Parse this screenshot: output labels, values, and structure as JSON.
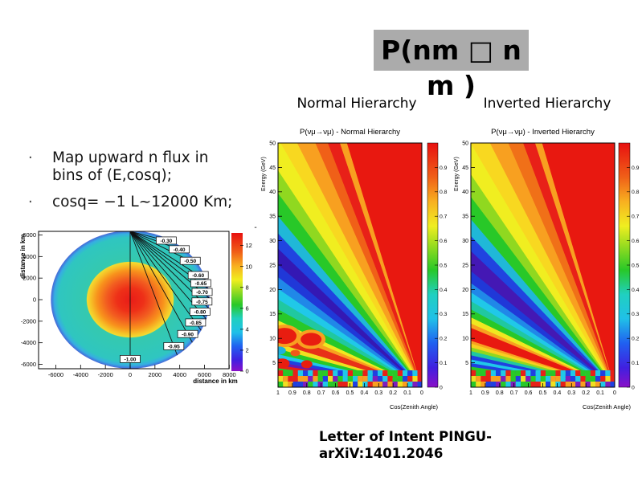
{
  "slide": {
    "title_line1": "P(nm □ n",
    "title_line2": "m )",
    "title_bg": "#ababab",
    "col_left_header": "Normal Hierarchy",
    "col_right_header": "Inverted Hierarchy",
    "bullets": [
      {
        "lines": [
          "Map upward n flux in",
          "bins of (E,cosq);"
        ]
      },
      {
        "lines": [
          "cosq= −1 L~12000 Km;"
        ]
      }
    ],
    "caption_line1": "Letter of Intent PINGU-",
    "caption_line2": "arXiV:1401.2046",
    "stray_mark": "-"
  },
  "chart_data": [
    {
      "id": "earth-plot",
      "type": "heatmap",
      "title": "",
      "xlabel": "distance in km",
      "ylabel": "distance in km",
      "xlim": [
        -7400,
        8000
      ],
      "ylim": [
        -6400,
        6400
      ],
      "xticks": [
        -6000,
        -4000,
        -2000,
        0,
        2000,
        4000,
        6000,
        8000
      ],
      "yticks": [
        6000,
        4000,
        2000,
        0,
        -2000,
        -4000,
        -6000
      ],
      "colorbar": {
        "min": 0,
        "max": 13.2,
        "ticks": [
          12,
          10,
          8,
          6,
          4,
          2,
          0
        ]
      },
      "earth_radius_km": 6400,
      "density_rings": [
        {
          "r_frac": 0.0,
          "color": "#e81c18"
        },
        {
          "r_frac": 0.17,
          "color": "#ee3018"
        },
        {
          "r_frac": 0.3,
          "color": "#f25c20"
        },
        {
          "r_frac": 0.42,
          "color": "#f8921c"
        },
        {
          "r_frac": 0.5,
          "color": "#f6c428"
        },
        {
          "r_frac": 0.545,
          "color": "#f2dc30"
        },
        {
          "r_frac": 0.552,
          "color": "#35c9ae"
        },
        {
          "r_frac": 0.9,
          "color": "#2fc6c0"
        },
        {
          "r_frac": 0.955,
          "color": "#36aee2"
        },
        {
          "r_frac": 0.98,
          "color": "#3e86dd"
        },
        {
          "r_frac": 1.0,
          "color": "#4968d8"
        }
      ],
      "trajectories": [
        {
          "cos": -0.3,
          "label": "-0.30"
        },
        {
          "cos": -0.4,
          "label": "-0.40"
        },
        {
          "cos": -0.5,
          "label": "-0.50"
        },
        {
          "cos": -0.6,
          "label": "-0.60"
        },
        {
          "cos": -0.65,
          "label": "-0.65"
        },
        {
          "cos": -0.7,
          "label": "-0.70"
        },
        {
          "cos": -0.75,
          "label": "-0.75"
        },
        {
          "cos": -0.8,
          "label": "-0.80"
        },
        {
          "cos": -0.85,
          "label": "-0.85"
        },
        {
          "cos": -0.9,
          "label": "-0.90"
        },
        {
          "cos": -0.95,
          "label": "-0.95"
        },
        {
          "cos": -1.0,
          "label": "-1.00"
        }
      ]
    },
    {
      "id": "oscillogram-normal",
      "type": "heatmap",
      "title": "P(νμ→νμ) - Normal Hierarchy",
      "xlabel": "Cos(Zenith Angle)",
      "ylabel": "Energy (GeV)",
      "xlim": [
        1,
        0
      ],
      "ylim": [
        0,
        50
      ],
      "xticks": [
        "1",
        "0.9",
        "0.8",
        "0.7",
        "0.6",
        "0.5",
        "0.4",
        "0.3",
        "0.2",
        "0.1",
        "0"
      ],
      "yticks": [
        50,
        45,
        40,
        35,
        30,
        25,
        20,
        15,
        10,
        5
      ],
      "colorbar_ticks": [
        "0.9",
        "0.8",
        "0.7",
        "0.6",
        "0.5",
        "0.4",
        "0.3",
        "0.2",
        "0.1",
        "0"
      ],
      "bands": [
        [
          0,
          1.0,
          "#7d1dbe"
        ],
        [
          1.0,
          1.5,
          "#28c828"
        ],
        [
          1.5,
          2.0,
          "#20c8e8"
        ],
        [
          2.0,
          2.5,
          "#e82018"
        ],
        [
          2.5,
          3.0,
          "#7d1dbe"
        ],
        [
          3.0,
          3.6,
          "#2040e0"
        ],
        [
          3.6,
          4.2,
          "#28c828"
        ],
        [
          4.2,
          4.8,
          "#f0e020"
        ],
        [
          4.8,
          5.6,
          "#e82018"
        ],
        [
          5.6,
          6.6,
          "#2040e0"
        ],
        [
          6.6,
          7.6,
          "#28c828"
        ],
        [
          7.6,
          8.8,
          "#e82018"
        ],
        [
          8.8,
          10,
          "#6a18b0"
        ],
        [
          10,
          11.5,
          "#2040e0"
        ],
        [
          11.5,
          13,
          "#20c8e8"
        ],
        [
          13,
          15,
          "#28c828"
        ],
        [
          15,
          17,
          "#f0e020"
        ],
        [
          17,
          21,
          "#e83018"
        ],
        [
          21,
          23,
          "#f8a020"
        ],
        [
          23,
          25,
          "#f0e820"
        ],
        [
          25,
          28.5,
          "#28c828"
        ],
        [
          28.5,
          31.5,
          "#20c8a0"
        ],
        [
          31.5,
          34.5,
          "#20c8e8"
        ],
        [
          34.5,
          37.5,
          "#2088e8"
        ],
        [
          37.5,
          40.5,
          "#2038d8"
        ],
        [
          40.5,
          44,
          "#3418b4"
        ],
        [
          44,
          47,
          "#2044e0"
        ],
        [
          47,
          50,
          "#20b8d8"
        ],
        [
          50,
          53.5,
          "#28c828"
        ],
        [
          53.5,
          56.5,
          "#90d820"
        ],
        [
          56.5,
          60,
          "#f0ee20"
        ],
        [
          60,
          63,
          "#f8d820"
        ],
        [
          63,
          66.5,
          "#f8a020"
        ],
        [
          66.5,
          69,
          "#f06018"
        ],
        [
          69,
          71.5,
          "#e82018"
        ],
        [
          71.5,
          73,
          "#f8a020"
        ],
        [
          73,
          90,
          "#e81810"
        ]
      ],
      "blobs": [
        [
          0.955,
          10.5,
          20,
          14,
          "#f8a020"
        ],
        [
          0.955,
          10.5,
          15,
          10,
          "#e81d10"
        ],
        [
          0.77,
          9.8,
          18,
          12,
          "#f8a020"
        ],
        [
          0.77,
          9.8,
          13,
          8,
          "#e81d10"
        ],
        [
          0.99,
          7.5,
          8,
          5,
          "#20b0e0"
        ],
        [
          0.88,
          7.0,
          6,
          4,
          "#f05818"
        ],
        [
          0.97,
          4.9,
          9,
          6,
          "#e81d10"
        ],
        [
          0.8,
          4.7,
          7,
          5,
          "#e81d10"
        ]
      ],
      "noise": true
    },
    {
      "id": "oscillogram-inverted",
      "type": "heatmap",
      "title": "P(νμ→νμ) - Inverted Hierarchy",
      "xlabel": "Cos(Zenith Angle)",
      "ylabel": "Energy (GeV)",
      "xlim": [
        1,
        0
      ],
      "ylim": [
        0,
        50
      ],
      "xticks": [
        "1",
        "0.9",
        "0.8",
        "0.7",
        "0.6",
        "0.5",
        "0.4",
        "0.3",
        "0.2",
        "0.1",
        "0"
      ],
      "yticks": [
        50,
        45,
        40,
        35,
        30,
        25,
        20,
        15,
        10,
        5
      ],
      "colorbar_ticks": [
        "0.9",
        "0.8",
        "0.7",
        "0.6",
        "0.5",
        "0.4",
        "0.3",
        "0.2",
        "0.1",
        "0"
      ],
      "bands": [
        [
          0,
          0.9,
          "#7d1dbe"
        ],
        [
          0.9,
          1.7,
          "#e82018"
        ],
        [
          1.7,
          2.5,
          "#28c828"
        ],
        [
          2.5,
          3.3,
          "#2040e0"
        ],
        [
          3.3,
          4.1,
          "#e82018"
        ],
        [
          4.1,
          5,
          "#28c828"
        ],
        [
          5,
          5.9,
          "#2040e0"
        ],
        [
          5.9,
          7,
          "#e82018"
        ],
        [
          7,
          8.2,
          "#28c828"
        ],
        [
          8.2,
          9.6,
          "#2040e0"
        ],
        [
          9.6,
          11,
          "#20c8e8"
        ],
        [
          11,
          12.6,
          "#2040e0"
        ],
        [
          12.6,
          14.2,
          "#20c8a0"
        ],
        [
          14.2,
          15.6,
          "#90d820"
        ],
        [
          15.6,
          17,
          "#f8d020"
        ],
        [
          17,
          18,
          "#f8a020"
        ],
        [
          18,
          22.5,
          "#e81810"
        ],
        [
          22.5,
          24,
          "#f8a020"
        ],
        [
          24,
          26,
          "#f0e820"
        ],
        [
          26,
          28.5,
          "#28c828"
        ],
        [
          28.5,
          31,
          "#20c8a0"
        ],
        [
          31,
          33.5,
          "#20c8e8"
        ],
        [
          33.5,
          36,
          "#2088e8"
        ],
        [
          36,
          39,
          "#2038d8"
        ],
        [
          39,
          43.5,
          "#4418b4"
        ],
        [
          43.5,
          46.5,
          "#2044e0"
        ],
        [
          46.5,
          49.5,
          "#20b8d8"
        ],
        [
          49.5,
          53,
          "#28c828"
        ],
        [
          53,
          56,
          "#90d820"
        ],
        [
          56,
          59.5,
          "#f0ee20"
        ],
        [
          59.5,
          63,
          "#f8d820"
        ],
        [
          63,
          66.5,
          "#f8a020"
        ],
        [
          66.5,
          69.5,
          "#f07018"
        ],
        [
          69.5,
          72,
          "#e82018"
        ],
        [
          72,
          73.5,
          "#f8a020"
        ],
        [
          73.5,
          90,
          "#e81810"
        ]
      ],
      "blobs": [],
      "noise": true
    }
  ]
}
